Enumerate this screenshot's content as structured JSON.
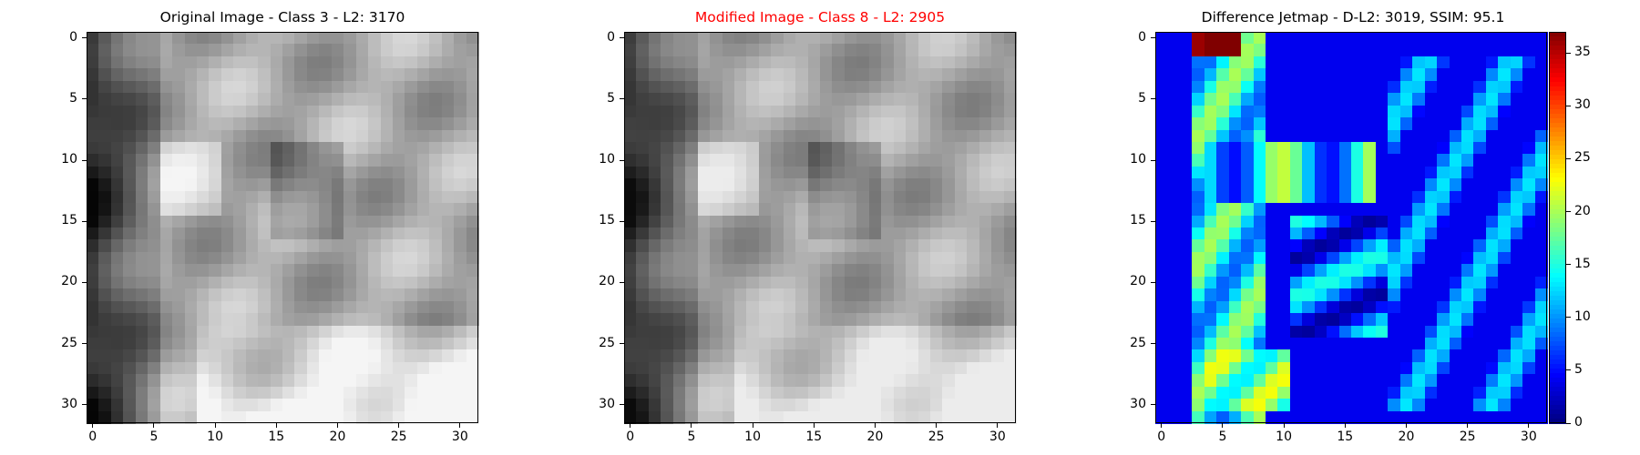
{
  "chart_data": [
    {
      "type": "heatmap",
      "title": "Original Image - Class 3 - L2: 3170",
      "title_color": "#000000",
      "colormap": "gray",
      "x_ticks": [
        "0",
        "5",
        "10",
        "15",
        "20",
        "25",
        "30"
      ],
      "y_ticks": [
        "0",
        "5",
        "10",
        "15",
        "20",
        "25",
        "30"
      ],
      "xlim": [
        0,
        31
      ],
      "ylim": [
        0,
        31
      ]
    },
    {
      "type": "heatmap",
      "title": "Modified Image - Class 8 - L2: 2905",
      "title_color": "#ff0000",
      "colormap": "gray",
      "x_ticks": [
        "0",
        "5",
        "10",
        "15",
        "20",
        "25",
        "30"
      ],
      "y_ticks": [
        "0",
        "5",
        "10",
        "15",
        "20",
        "25",
        "30"
      ],
      "xlim": [
        0,
        31
      ],
      "ylim": [
        0,
        31
      ]
    },
    {
      "type": "heatmap",
      "title": "Difference Jetmap - D-L2: 3019, SSIM: 95.1",
      "title_color": "#000000",
      "colormap": "jet",
      "x_ticks": [
        "0",
        "5",
        "10",
        "15",
        "20",
        "25",
        "30"
      ],
      "y_ticks": [
        "0",
        "5",
        "10",
        "15",
        "20",
        "25",
        "30"
      ],
      "xlim": [
        0,
        31
      ],
      "ylim": [
        0,
        31
      ],
      "colorbar": {
        "range": [
          0,
          37
        ],
        "ticks": [
          "0",
          "5",
          "10",
          "15",
          "20",
          "25",
          "30",
          "35"
        ]
      }
    }
  ]
}
